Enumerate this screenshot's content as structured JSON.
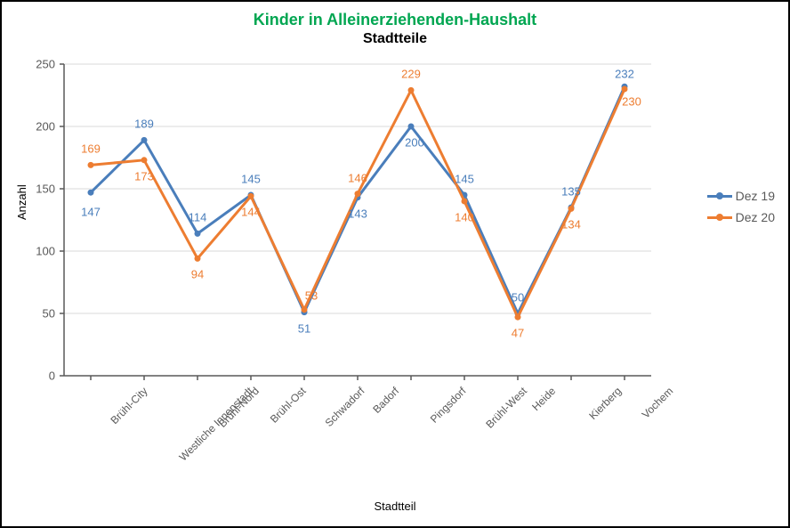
{
  "chart": {
    "type": "line",
    "title_main": "Kinder in Alleinerziehenden-Haushalt",
    "title_main_color": "#00a651",
    "title_main_fontsize": 18,
    "title_sub": "Stadtteile",
    "title_sub_color": "#000000",
    "title_sub_fontsize": 16,
    "y_axis_label": "Anzahl",
    "x_axis_label": "Stadtteil",
    "categories": [
      "Brühl-City",
      "Westliche Innenstadt",
      "Brühl-Nord",
      "Brühl-Ost",
      "Schwadorf",
      "Badorf",
      "Pingsdorf",
      "Brühl-West",
      "Heide",
      "Kierberg",
      "Vochem"
    ],
    "ylim": [
      0,
      250
    ],
    "ytick_step": 50,
    "yticks": [
      0,
      50,
      100,
      150,
      200,
      250
    ],
    "background_color": "#ffffff",
    "grid_color": "#d9d9d9",
    "axis_color": "#595959",
    "series": [
      {
        "name": "Dez 19",
        "color": "#4a7ebb",
        "label_color": "#4a7ebb",
        "line_width": 3,
        "marker_size": 7,
        "values": [
          147,
          189,
          114,
          145,
          51,
          143,
          200,
          145,
          50,
          135,
          232
        ],
        "label_offsets": [
          [
            0,
            22
          ],
          [
            0,
            -18
          ],
          [
            0,
            -18
          ],
          [
            0,
            -18
          ],
          [
            0,
            18
          ],
          [
            0,
            18
          ],
          [
            4,
            18
          ],
          [
            0,
            -18
          ],
          [
            0,
            -18
          ],
          [
            0,
            -18
          ],
          [
            0,
            -14
          ]
        ]
      },
      {
        "name": "Dez 20",
        "color": "#ed7d31",
        "label_color": "#ed7d31",
        "line_width": 3,
        "marker_size": 7,
        "values": [
          169,
          173,
          94,
          144,
          53,
          146,
          229,
          140,
          47,
          134,
          230
        ],
        "label_offsets": [
          [
            0,
            -18
          ],
          [
            0,
            18
          ],
          [
            0,
            18
          ],
          [
            0,
            18
          ],
          [
            8,
            -16
          ],
          [
            0,
            -18
          ],
          [
            0,
            -18
          ],
          [
            0,
            18
          ],
          [
            0,
            18
          ],
          [
            0,
            18
          ],
          [
            8,
            14
          ]
        ]
      }
    ],
    "legend_items": [
      "Dez 19",
      "Dez 20"
    ],
    "legend_text_color": "#595959"
  }
}
